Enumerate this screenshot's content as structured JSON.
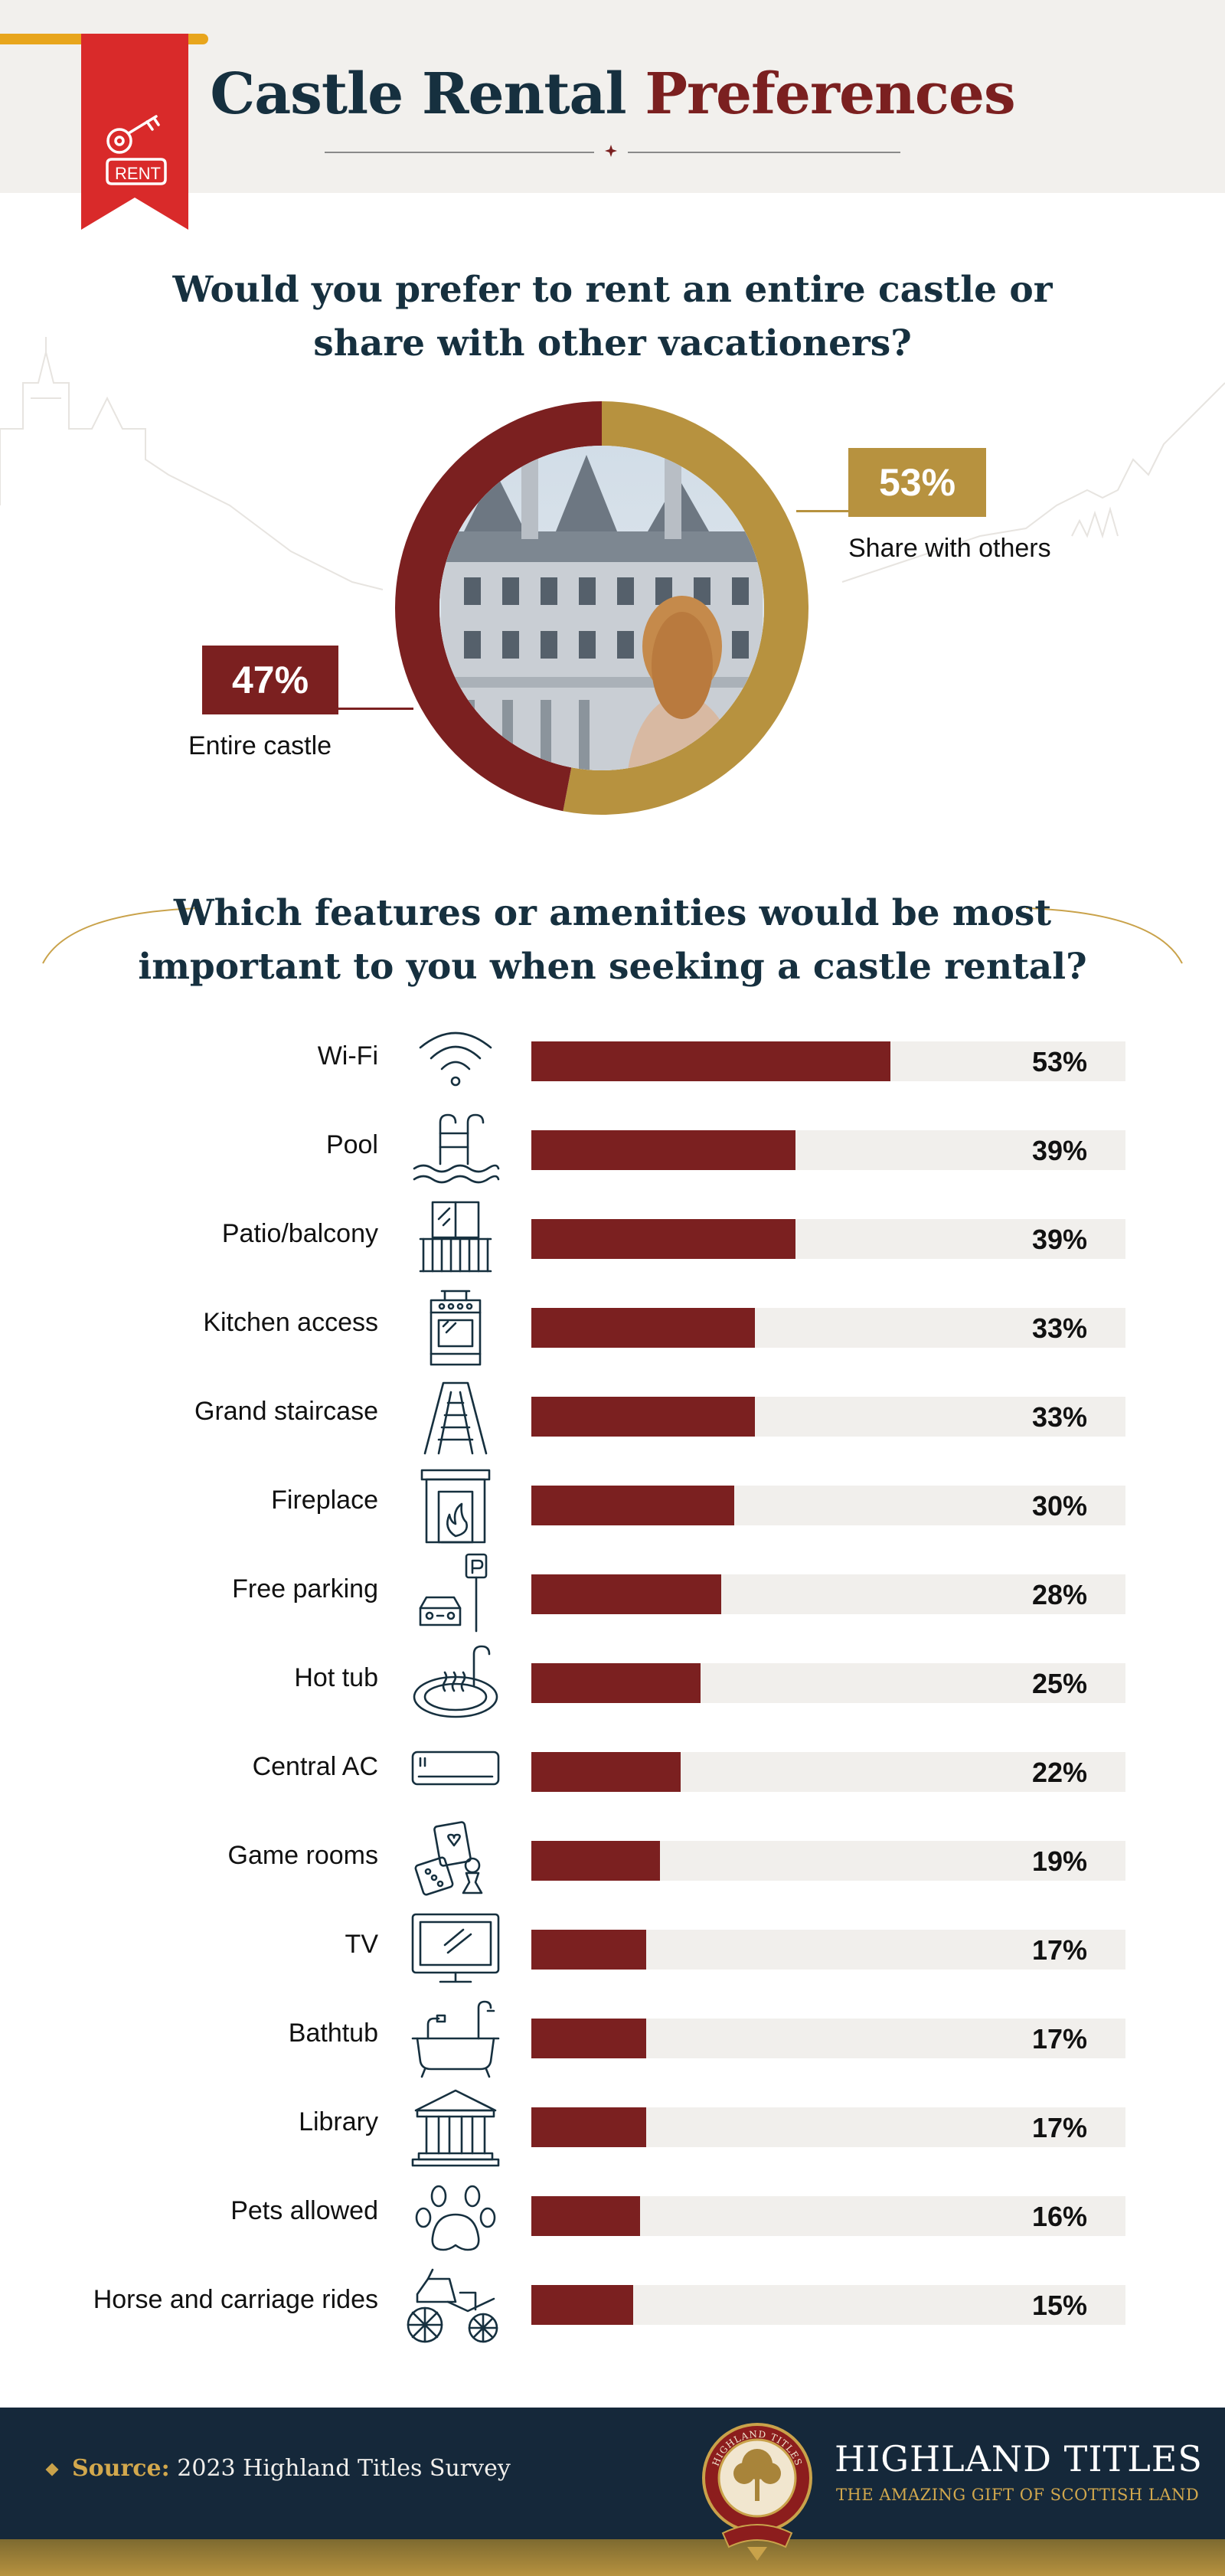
{
  "header": {
    "title_main": "Castle Rental",
    "title_accent": "Preferences",
    "badge_text": "RENT"
  },
  "colors": {
    "accent_red": "#7b2020",
    "accent_gold": "#b7923f",
    "navy": "#16303f",
    "track": "#f1efec"
  },
  "chart_data": [
    {
      "type": "pie",
      "title": "Would you prefer to rent an entire castle or share with other vacationers?",
      "title_lines": [
        "Would you prefer to rent an entire castle or",
        "share with other vacationers?"
      ],
      "slices": [
        {
          "label": "Share with others",
          "value": 53,
          "display": "53%",
          "color": "#b7923f"
        },
        {
          "label": "Entire castle",
          "value": 47,
          "display": "47%",
          "color": "#7b2020"
        }
      ]
    },
    {
      "type": "bar",
      "title": "Which features or amenities would be most important to you when seeking a castle rental?",
      "title_lines": [
        "Which features or amenities would be most",
        "important to you when seeking a castle rental?"
      ],
      "categories": [
        "Wi-Fi",
        "Pool",
        "Patio/balcony",
        "Kitchen access",
        "Grand staircase",
        "Fireplace",
        "Free parking",
        "Hot tub",
        "Central AC",
        "Game rooms",
        "TV",
        "Bathtub",
        "Library",
        "Pets allowed",
        "Horse and carriage rides"
      ],
      "values": [
        53,
        39,
        39,
        33,
        33,
        30,
        28,
        25,
        22,
        19,
        17,
        17,
        17,
        16,
        15
      ],
      "labels": [
        "53%",
        "39%",
        "39%",
        "33%",
        "33%",
        "30%",
        "28%",
        "25%",
        "22%",
        "19%",
        "17%",
        "17%",
        "17%",
        "16%",
        "15%"
      ],
      "icons": [
        "wifi-icon",
        "pool-icon",
        "balcony-icon",
        "stove-icon",
        "staircase-icon",
        "fireplace-icon",
        "parking-icon",
        "hot-tub-icon",
        "air-conditioner-icon",
        "game-icon",
        "tv-icon",
        "bathtub-icon",
        "library-icon",
        "paw-icon",
        "carriage-icon"
      ],
      "xlim": [
        0,
        100
      ]
    }
  ],
  "footer": {
    "source_key": "Source:",
    "source_text": "2023 Highland Titles Survey",
    "brand_name": "HIGHLAND TITLES",
    "brand_tag": "THE AMAZING GIFT OF SCOTTISH LAND",
    "seal_text": "HIGHLAND TITLES"
  }
}
